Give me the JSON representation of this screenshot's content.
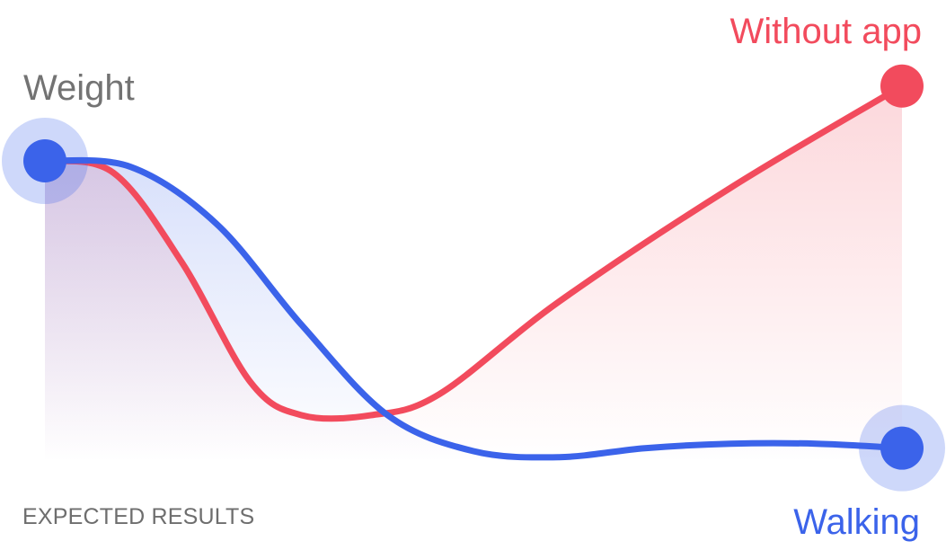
{
  "chart_data": {
    "type": "line",
    "title": "",
    "caption": "EXPECTED RESULTS",
    "ylabel": "Weight",
    "x_range": [
      0,
      1
    ],
    "ylim": [
      0,
      1
    ],
    "grid": "two dashed reference lines at start weight and lowest level",
    "reference_lines": [
      {
        "name": "start-weight",
        "y": 1.0
      },
      {
        "name": "baseline",
        "y": 0.0
      }
    ],
    "series": [
      {
        "name": "Without app",
        "color": "#f24b5d",
        "fill": true,
        "end_marker": true,
        "points": [
          [
            0.0,
            1.0
          ],
          [
            0.08,
            0.96
          ],
          [
            0.16,
            0.66
          ],
          [
            0.24,
            0.26
          ],
          [
            0.3,
            0.15
          ],
          [
            0.38,
            0.15
          ],
          [
            0.46,
            0.22
          ],
          [
            0.6,
            0.53
          ],
          [
            0.8,
            0.91
          ],
          [
            1.0,
            1.25
          ]
        ]
      },
      {
        "name": "Walking",
        "color": "#3b63ea",
        "fill": true,
        "start_marker": true,
        "end_marker": true,
        "points": [
          [
            0.0,
            1.0
          ],
          [
            0.1,
            0.98
          ],
          [
            0.2,
            0.79
          ],
          [
            0.3,
            0.45
          ],
          [
            0.4,
            0.15
          ],
          [
            0.5,
            0.03
          ],
          [
            0.6,
            0.01
          ],
          [
            0.7,
            0.04
          ],
          [
            0.8,
            0.055
          ],
          [
            0.9,
            0.055
          ],
          [
            1.0,
            0.04
          ]
        ]
      }
    ],
    "labels": {
      "weight": "Weight",
      "without_app": "Without app",
      "walking": "Walking"
    }
  }
}
